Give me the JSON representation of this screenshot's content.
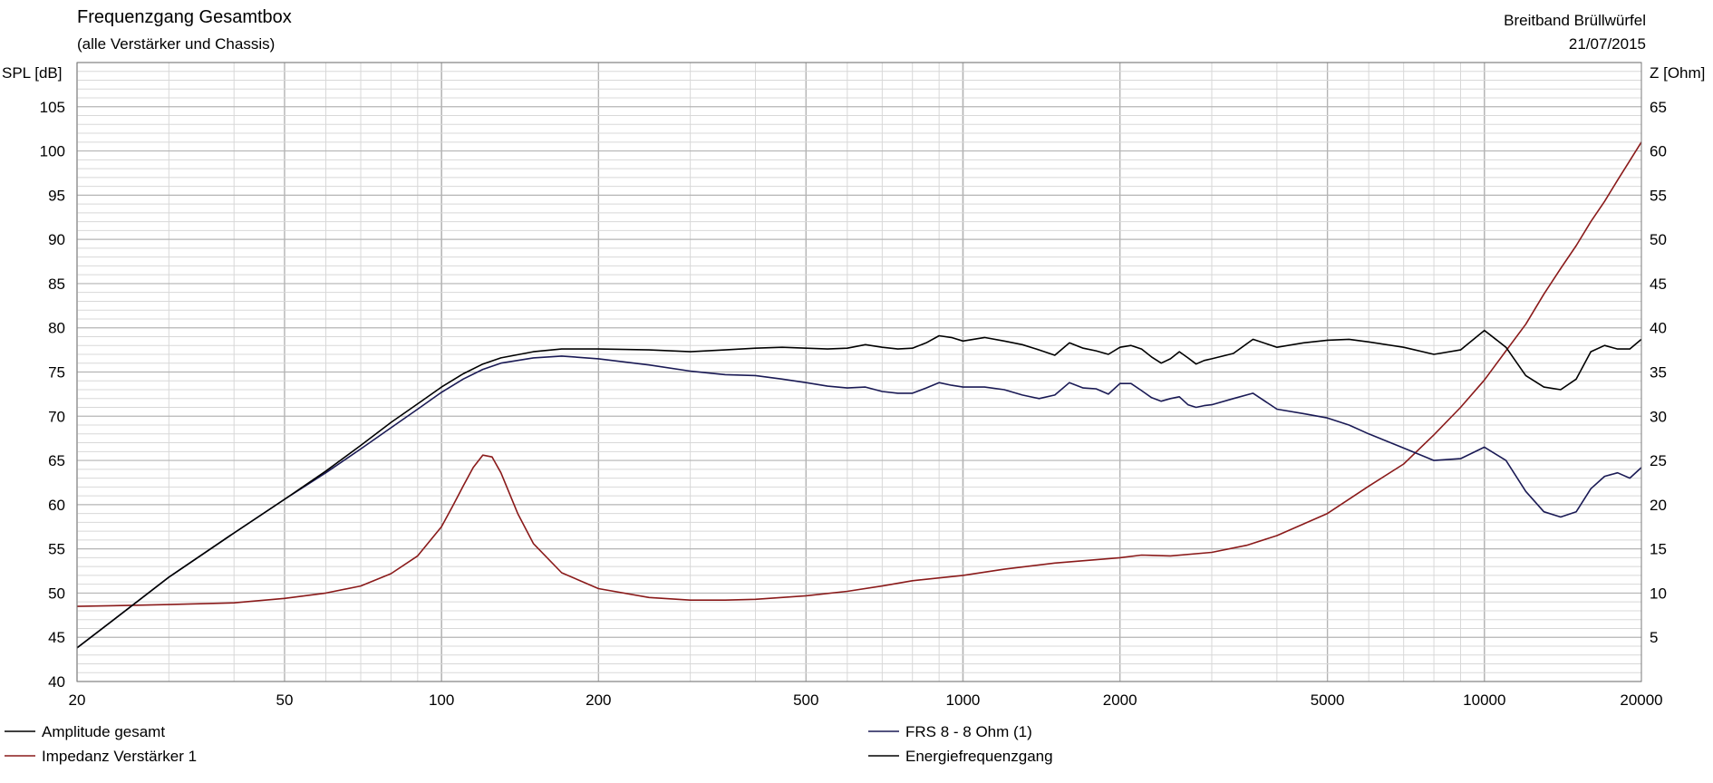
{
  "header": {
    "title": "Frequenzgang Gesamtbox",
    "subtitle": "(alle Verstärker und Chassis)",
    "project": "Breitband Brüllwürfel",
    "date": "21/07/2015"
  },
  "chart_data": {
    "type": "line",
    "x_scale": "log",
    "xlim": [
      20,
      20000
    ],
    "x_ticks": [
      20,
      50,
      100,
      200,
      500,
      1000,
      2000,
      5000,
      10000,
      20000
    ],
    "ylabel_left": "SPL [dB]",
    "ylim_left": [
      40,
      110
    ],
    "y_ticks_left": [
      40,
      45,
      50,
      55,
      60,
      65,
      70,
      75,
      80,
      85,
      90,
      95,
      100,
      105
    ],
    "ylabel_right": "Z [Ohm]",
    "ylim_right": [
      0,
      70
    ],
    "y_ticks_right": [
      5,
      10,
      15,
      20,
      25,
      30,
      35,
      40,
      45,
      50,
      55,
      60,
      65
    ],
    "grid": true,
    "legend_placement": "bottom",
    "colors": {
      "black": "#000000",
      "navy": "#1a1a55",
      "darkred": "#8a1a1a",
      "grid": "#b4b4b4",
      "gridMinor": "#d8d8d8"
    },
    "series": [
      {
        "name": "Amplitude gesamt",
        "axis": "left",
        "color": "#000000",
        "x": [
          20,
          25,
          30,
          40,
          50,
          60,
          70,
          80,
          90,
          100,
          110,
          120,
          130,
          150,
          170,
          200,
          250,
          300,
          350,
          400,
          450,
          500,
          550,
          600,
          650,
          700,
          750,
          800,
          850,
          900,
          950,
          1000,
          1100,
          1200,
          1300,
          1400,
          1500,
          1600,
          1700,
          1800,
          1900,
          2000,
          2100,
          2200,
          2300,
          2400,
          2500,
          2600,
          2700,
          2800,
          2900,
          3000,
          3300,
          3600,
          4000,
          4500,
          5000,
          5500,
          6000,
          7000,
          8000,
          9000,
          10000,
          11000,
          12000,
          13000,
          14000,
          15000,
          16000,
          17000,
          18000,
          19000,
          20000
        ],
        "values": [
          43.8,
          48.2,
          51.8,
          56.8,
          60.6,
          63.8,
          66.7,
          69.3,
          71.4,
          73.3,
          74.8,
          75.9,
          76.6,
          77.3,
          77.6,
          77.6,
          77.5,
          77.3,
          77.5,
          77.7,
          77.8,
          77.7,
          77.6,
          77.7,
          78.1,
          77.8,
          77.6,
          77.7,
          78.3,
          79.1,
          78.9,
          78.5,
          78.9,
          78.5,
          78.1,
          77.5,
          76.9,
          78.3,
          77.7,
          77.4,
          77.0,
          77.8,
          78.0,
          77.6,
          76.7,
          76.0,
          76.5,
          77.3,
          76.6,
          75.9,
          76.3,
          76.5,
          77.1,
          78.7,
          77.8,
          78.3,
          78.6,
          78.7,
          78.4,
          77.8,
          77.0,
          77.5,
          79.7,
          77.8,
          74.6,
          73.3,
          73.0,
          74.2,
          77.3,
          78.0,
          77.6,
          77.6,
          78.7
        ]
      },
      {
        "name": "Impedanz Verstärker 1",
        "axis": "right",
        "color": "#8a1a1a",
        "x": [
          20,
          25,
          30,
          40,
          50,
          60,
          70,
          80,
          90,
          100,
          105,
          110,
          115,
          120,
          125,
          130,
          140,
          150,
          170,
          200,
          250,
          300,
          350,
          400,
          500,
          600,
          700,
          800,
          1000,
          1200,
          1500,
          2000,
          2200,
          2500,
          3000,
          3500,
          4000,
          5000,
          6000,
          7000,
          8000,
          9000,
          10000,
          11000,
          12000,
          13000,
          14000,
          15000,
          16000,
          17000,
          18000,
          19000,
          20000
        ],
        "values": [
          8.5,
          8.6,
          8.7,
          8.9,
          9.4,
          10.0,
          10.8,
          12.2,
          14.2,
          17.5,
          19.8,
          22.1,
          24.2,
          25.6,
          25.4,
          23.6,
          19.0,
          15.6,
          12.3,
          10.5,
          9.5,
          9.2,
          9.2,
          9.3,
          9.7,
          10.2,
          10.8,
          11.4,
          12.0,
          12.7,
          13.4,
          14.0,
          14.3,
          14.2,
          14.6,
          15.4,
          16.5,
          19.0,
          22.1,
          24.6,
          27.9,
          31.0,
          34.1,
          37.4,
          40.4,
          43.8,
          46.7,
          49.3,
          52.0,
          54.3,
          56.7,
          58.9,
          61.0
        ]
      },
      {
        "name": "FRS 8 - 8 Ohm (1)",
        "axis": "left",
        "color": "#1a1a55",
        "x": [
          20,
          25,
          30,
          40,
          50,
          60,
          70,
          80,
          90,
          100,
          110,
          120,
          130,
          150,
          170,
          200,
          250,
          300,
          350,
          400,
          450,
          500,
          550,
          600,
          650,
          700,
          750,
          800,
          850,
          900,
          950,
          1000,
          1100,
          1200,
          1300,
          1400,
          1500,
          1600,
          1700,
          1800,
          1900,
          2000,
          2100,
          2200,
          2300,
          2400,
          2500,
          2600,
          2700,
          2800,
          2900,
          3000,
          3300,
          3600,
          4000,
          4500,
          5000,
          5500,
          6000,
          7000,
          8000,
          9000,
          10000,
          11000,
          12000,
          13000,
          14000,
          15000,
          16000,
          17000,
          18000,
          19000,
          20000
        ],
        "values": [
          43.8,
          48.2,
          51.8,
          56.8,
          60.6,
          63.6,
          66.3,
          68.7,
          70.8,
          72.7,
          74.2,
          75.3,
          76.0,
          76.6,
          76.8,
          76.5,
          75.8,
          75.1,
          74.7,
          74.6,
          74.2,
          73.8,
          73.4,
          73.2,
          73.3,
          72.8,
          72.6,
          72.6,
          73.2,
          73.8,
          73.5,
          73.3,
          73.3,
          73.0,
          72.4,
          72.0,
          72.4,
          73.8,
          73.2,
          73.1,
          72.5,
          73.7,
          73.7,
          72.9,
          72.1,
          71.7,
          72.0,
          72.2,
          71.3,
          71.0,
          71.2,
          71.3,
          72.0,
          72.6,
          70.8,
          70.3,
          69.8,
          69.0,
          68.0,
          66.4,
          65.0,
          65.2,
          66.5,
          65.0,
          61.5,
          59.2,
          58.6,
          59.2,
          61.8,
          63.2,
          63.6,
          63.0,
          64.2
        ]
      },
      {
        "name": "Energiefrequenzgang",
        "axis": "left",
        "color": "#000000",
        "legend_only": true,
        "x": [],
        "values": []
      }
    ]
  }
}
